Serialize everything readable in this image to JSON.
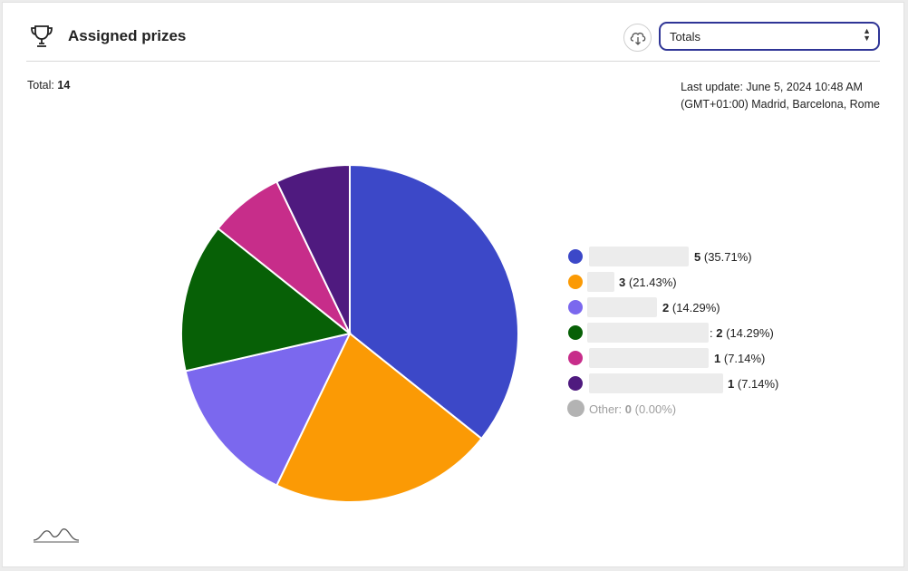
{
  "header": {
    "title": "Assigned prizes",
    "trophy_icon": "trophy-icon",
    "download_icon": "cloud-download-icon",
    "select": {
      "value": "Totals"
    }
  },
  "summary": {
    "total_label": "Total:",
    "total_value": "14",
    "last_update_line1": "Last update: June 5, 2024 10:48 AM",
    "last_update_line2": "(GMT+01:00) Madrid, Barcelona, Rome"
  },
  "colors": {
    "accent": "#2f3596",
    "slice1": "#3c48c8",
    "slice2": "#fb9a05",
    "slice3": "#7b68ee",
    "slice4": "#076006",
    "slice5": "#c72d8a",
    "slice6": "#4f1a7f",
    "other": "#b3b3b3"
  },
  "chart_data": {
    "type": "pie",
    "total": 14,
    "slices": [
      {
        "value": 5,
        "percent": "35.71%",
        "color": "#3c48c8"
      },
      {
        "value": 3,
        "percent": "21.43%",
        "color": "#fb9a05"
      },
      {
        "value": 2,
        "percent": "14.29%",
        "color": "#7b68ee"
      },
      {
        "value": 2,
        "percent": "14.29%",
        "color": "#076006"
      },
      {
        "value": 1,
        "percent": "7.14%",
        "color": "#c72d8a"
      },
      {
        "value": 1,
        "percent": "7.14%",
        "color": "#4f1a7f"
      }
    ],
    "other": {
      "label": "Other:",
      "value": 0,
      "percent": "0.00%",
      "color": "#b3b3b3"
    },
    "legend_placement": "right"
  },
  "legend": {
    "rows": [
      {
        "value": "5",
        "percent": "(35.71%)"
      },
      {
        "value": "3",
        "percent": "(21.43%)"
      },
      {
        "value": "2",
        "percent": "(14.29%)"
      },
      {
        "prefix": ":",
        "value": "2",
        "percent": "(14.29%)"
      },
      {
        "value": "1",
        "percent": "(7.14%)"
      },
      {
        "value": "1",
        "percent": "(7.14%)"
      }
    ],
    "other": {
      "label": "Other:",
      "value": "0",
      "percent": "(0.00%)"
    }
  }
}
